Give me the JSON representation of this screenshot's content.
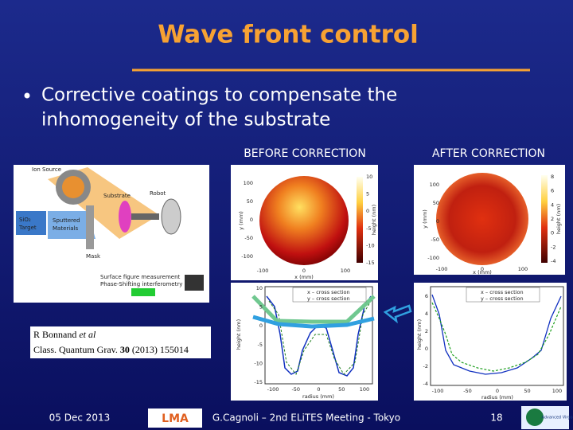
{
  "title": "Wave front control",
  "bullet_lines": [
    "Corrective coatings to compensate the",
    "inhomogeneity of the substrate"
  ],
  "labels": {
    "before": "BEFORE CORRECTION",
    "after": "AFTER CORRECTION"
  },
  "diagram": {
    "ion_source": "Ion Source",
    "substrate": "Substrate",
    "robot": "Robot",
    "target_1": "SiO₂",
    "target_2": "Target",
    "sputtered_1": "Sputtered",
    "sputtered_2": "Materials",
    "mask": "Mask",
    "measure_1": "Surface figure measurement",
    "measure_2": "Phase-Shifting interferometry"
  },
  "reference": {
    "authors": "R Bonnand",
    "etal": "et al",
    "journal": "Class. Quantum Grav.",
    "volume": "30",
    "rest": "(2013) 155014"
  },
  "plots": {
    "before_map": {
      "x_label": "x (mm)",
      "y_label": "y (mm)",
      "colorbar_label": "height (nm)",
      "yticks": [
        "100",
        "50",
        "0",
        "-50",
        "-100"
      ],
      "xticks": [
        "-100",
        "0",
        "100"
      ],
      "cticks": [
        "10",
        "5",
        "0",
        "-5",
        "-10",
        "-15"
      ]
    },
    "before_section": {
      "x_label": "radius (mm)",
      "y_label": "height (nm)",
      "yticks": [
        "10",
        "5",
        "0",
        "-5",
        "-10",
        "-15"
      ],
      "xticks": [
        "-100",
        "-50",
        "0",
        "50",
        "100"
      ],
      "legend": [
        "x – cross section",
        "y – cross section"
      ]
    },
    "after_map": {
      "x_label": "x (mm)",
      "y_label": "y (mm)",
      "colorbar_label": "height (nm)",
      "yticks": [
        "100",
        "50",
        "0",
        "-50",
        "-100"
      ],
      "xticks": [
        "-100",
        "0",
        "100"
      ],
      "cticks": [
        "8",
        "6",
        "4",
        "2",
        "0",
        "-2",
        "-4"
      ]
    },
    "after_section": {
      "x_label": "radius (mm)",
      "y_label": "height (nm)",
      "yticks": [
        "6",
        "4",
        "2",
        "0",
        "-2",
        "-4"
      ],
      "xticks": [
        "-100",
        "-50",
        "0",
        "50",
        "100"
      ],
      "legend": [
        "x – cross section",
        "y – cross section"
      ]
    }
  },
  "footer": {
    "date": "05 Dec 2013",
    "presenter": "G.Cagnoli – 2nd ELiTES Meeting - Tokyo",
    "page": "18"
  },
  "logos": {
    "left": "LMA",
    "right": "Advanced Virgo"
  }
}
